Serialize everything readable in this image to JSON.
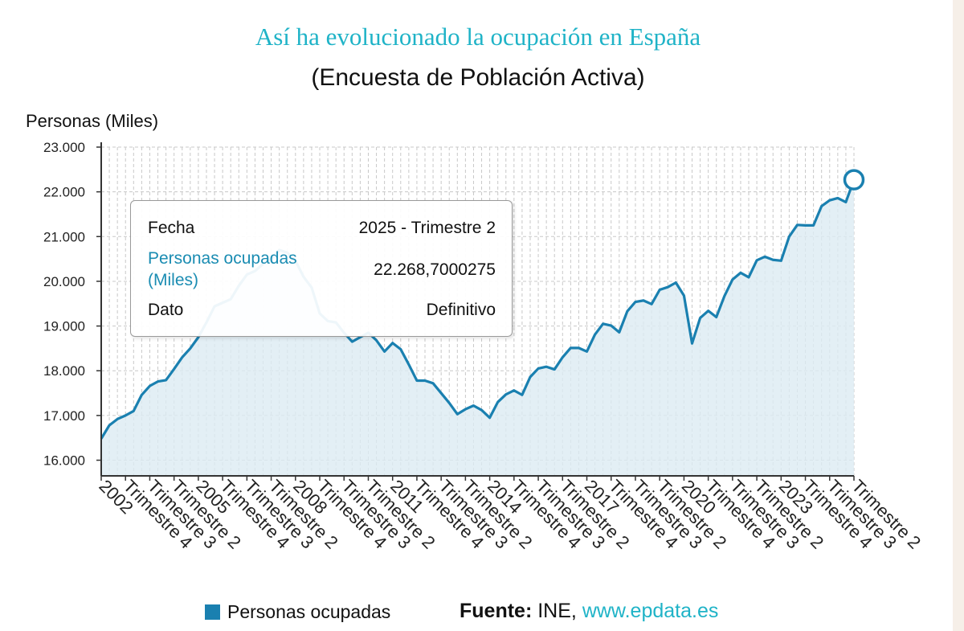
{
  "title": "Así ha evolucionado la ocupación en España",
  "subtitle": "(Encuesta de Población Activa)",
  "colors": {
    "title": "#1fb3c7",
    "line": "#1a80b0",
    "area": "#dcebf2",
    "link": "#1fb3c7"
  },
  "chart_data": {
    "type": "area",
    "ylabel": "Personas (Miles)",
    "xlabel": "",
    "ylim": [
      15650,
      23000
    ],
    "yticks": [
      16000,
      17000,
      18000,
      19000,
      20000,
      21000,
      22000,
      23000
    ],
    "ytick_labels": [
      "16.000",
      "17.000",
      "18.000",
      "19.000",
      "20.000",
      "21.000",
      "22.000",
      "23.000"
    ],
    "grid": true,
    "x_start": "2002 - Trimestre 1",
    "x_end": "2025 - Trimestre 2",
    "xtick_labels": [
      "2002",
      "Trimestre 4",
      "Trimestre 3",
      "Trimestre 2",
      "2005",
      "Trimestre 4",
      "Trimestre 3",
      "Trimestre 2",
      "2008",
      "Trimestre 4",
      "Trimestre 3",
      "Trimestre 2",
      "2011",
      "Trimestre 4",
      "Trimestre 3",
      "Trimestre 2",
      "2014",
      "Trimestre 4",
      "Trimestre 3",
      "Trimestre 2",
      "2017",
      "Trimestre 4",
      "Trimestre 3",
      "Trimestre 2",
      "2020",
      "Trimestre 4",
      "Trimestre 3",
      "Trimestre 2",
      "2023",
      "Trimestre 4",
      "Trimestre 3",
      "Trimestre 2"
    ],
    "series": [
      {
        "name": "Personas ocupadas",
        "values": [
          16480,
          16780,
          16920,
          17000,
          17100,
          17460,
          17660,
          17760,
          17790,
          18040,
          18300,
          18500,
          18750,
          19080,
          19440,
          19520,
          19600,
          19900,
          20150,
          20230,
          20390,
          20500,
          20700,
          20640,
          20460,
          20100,
          19860,
          19280,
          19110,
          19080,
          18850,
          18650,
          18750,
          18850,
          18680,
          18430,
          18620,
          18480,
          18140,
          17780,
          17780,
          17720,
          17500,
          17280,
          17030,
          17140,
          17220,
          17120,
          16950,
          17300,
          17470,
          17560,
          17460,
          17860,
          18050,
          18090,
          18030,
          18300,
          18510,
          18510,
          18430,
          18810,
          19050,
          19010,
          18860,
          19330,
          19540,
          19570,
          19490,
          19810,
          19870,
          19970,
          19680,
          18610,
          19180,
          19340,
          19200,
          19670,
          20040,
          20190,
          20090,
          20470,
          20550,
          20480,
          20460,
          21000,
          21260,
          21250,
          21250,
          21680,
          21810,
          21860,
          21770,
          22269
        ]
      }
    ]
  },
  "tooltip": {
    "rows": [
      {
        "key": "Fecha",
        "value": "2025 - Trimestre 2"
      },
      {
        "key": "Personas ocupadas (Miles)",
        "value": "22.268,7000275"
      },
      {
        "key": "Dato",
        "value": "Definitivo"
      }
    ]
  },
  "legend": {
    "label": "Personas ocupadas"
  },
  "source": {
    "label": "Fuente:",
    "org": "INE,",
    "link": "www.epdata.es"
  }
}
